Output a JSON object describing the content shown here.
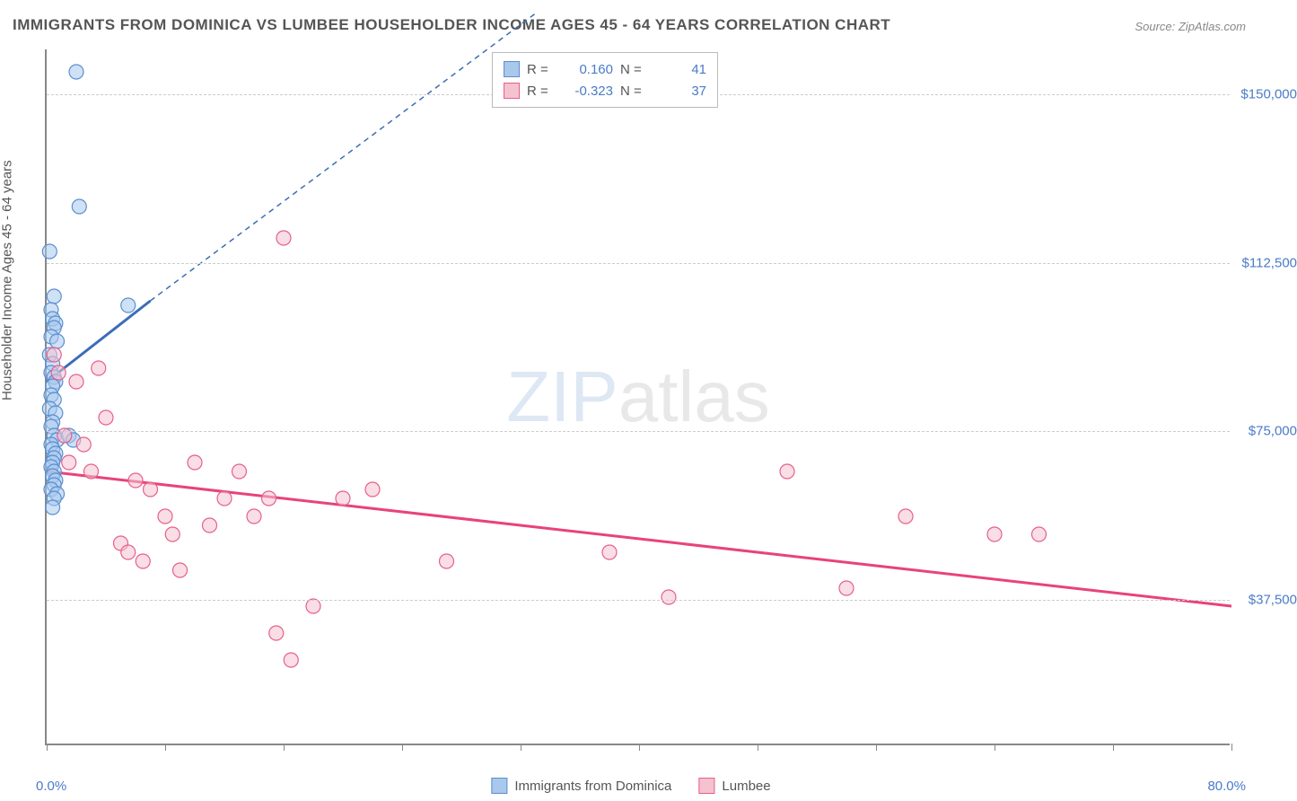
{
  "title": "IMMIGRANTS FROM DOMINICA VS LUMBEE HOUSEHOLDER INCOME AGES 45 - 64 YEARS CORRELATION CHART",
  "source": "Source: ZipAtlas.com",
  "y_axis_label": "Householder Income Ages 45 - 64 years",
  "x_axis": {
    "min_label": "0.0%",
    "max_label": "80.0%",
    "min": 0,
    "max": 80
  },
  "y_axis": {
    "ticks": [
      {
        "value": 37500,
        "label": "$37,500"
      },
      {
        "value": 75000,
        "label": "$75,000"
      },
      {
        "value": 112500,
        "label": "$112,500"
      },
      {
        "value": 150000,
        "label": "$150,000"
      }
    ],
    "min": 5000,
    "max": 160000
  },
  "x_ticks": [
    0,
    8,
    16,
    24,
    32,
    40,
    48,
    56,
    64,
    72,
    80
  ],
  "series": [
    {
      "name": "Immigrants from Dominica",
      "color_fill": "#a8c8ec",
      "color_stroke": "#5b8fd0",
      "R": "0.160",
      "N": "41",
      "trend": {
        "x1": 0,
        "y1": 86000,
        "x2": 7,
        "y2": 104000,
        "dash_x2": 33,
        "dash_y2": 168000,
        "color": "#3b6db8"
      },
      "points": [
        [
          0.2,
          115000
        ],
        [
          0.5,
          105000
        ],
        [
          0.3,
          102000
        ],
        [
          0.4,
          100000
        ],
        [
          0.6,
          99000
        ],
        [
          0.5,
          98000
        ],
        [
          0.3,
          96000
        ],
        [
          0.7,
          95000
        ],
        [
          0.2,
          92000
        ],
        [
          0.4,
          90000
        ],
        [
          0.3,
          88000
        ],
        [
          0.5,
          87000
        ],
        [
          0.6,
          86000
        ],
        [
          0.4,
          85000
        ],
        [
          0.3,
          83000
        ],
        [
          0.5,
          82000
        ],
        [
          0.2,
          80000
        ],
        [
          0.6,
          79000
        ],
        [
          0.4,
          77000
        ],
        [
          0.3,
          76000
        ],
        [
          0.5,
          74000
        ],
        [
          0.7,
          73000
        ],
        [
          0.3,
          72000
        ],
        [
          0.4,
          71000
        ],
        [
          0.6,
          70000
        ],
        [
          0.5,
          69000
        ],
        [
          0.4,
          68000
        ],
        [
          0.3,
          67000
        ],
        [
          0.5,
          66000
        ],
        [
          0.4,
          65000
        ],
        [
          0.6,
          64000
        ],
        [
          0.5,
          63000
        ],
        [
          0.3,
          62000
        ],
        [
          0.7,
          61000
        ],
        [
          0.5,
          60000
        ],
        [
          0.4,
          58000
        ],
        [
          1.5,
          74000
        ],
        [
          1.8,
          73000
        ],
        [
          2.0,
          155000
        ],
        [
          2.2,
          125000
        ],
        [
          5.5,
          103000
        ]
      ]
    },
    {
      "name": "Lumbee",
      "color_fill": "#f5c2cf",
      "color_stroke": "#e65f8e",
      "R": "-0.323",
      "N": "37",
      "trend": {
        "x1": 0,
        "y1": 66000,
        "x2": 80,
        "y2": 36000,
        "color": "#e8437a"
      },
      "points": [
        [
          0.5,
          92000
        ],
        [
          0.8,
          88000
        ],
        [
          1.2,
          74000
        ],
        [
          1.5,
          68000
        ],
        [
          2.0,
          86000
        ],
        [
          2.5,
          72000
        ],
        [
          3.0,
          66000
        ],
        [
          3.5,
          89000
        ],
        [
          4.0,
          78000
        ],
        [
          5.0,
          50000
        ],
        [
          5.5,
          48000
        ],
        [
          6.0,
          64000
        ],
        [
          6.5,
          46000
        ],
        [
          7.0,
          62000
        ],
        [
          8.0,
          56000
        ],
        [
          8.5,
          52000
        ],
        [
          9.0,
          44000
        ],
        [
          10.0,
          68000
        ],
        [
          11.0,
          54000
        ],
        [
          12.0,
          60000
        ],
        [
          13.0,
          66000
        ],
        [
          14.0,
          56000
        ],
        [
          15.0,
          60000
        ],
        [
          15.5,
          30000
        ],
        [
          16.0,
          118000
        ],
        [
          16.5,
          24000
        ],
        [
          18.0,
          36000
        ],
        [
          20.0,
          60000
        ],
        [
          22.0,
          62000
        ],
        [
          27.0,
          46000
        ],
        [
          38.0,
          48000
        ],
        [
          42.0,
          38000
        ],
        [
          50.0,
          66000
        ],
        [
          54.0,
          40000
        ],
        [
          58.0,
          56000
        ],
        [
          64.0,
          52000
        ],
        [
          67.0,
          52000
        ]
      ]
    }
  ],
  "watermark": {
    "part1": "ZIP",
    "part2": "atlas"
  },
  "marker_radius": 8,
  "marker_opacity": 0.55,
  "trend_line_width": 3,
  "background_color": "#ffffff",
  "grid_color": "#cccccc"
}
